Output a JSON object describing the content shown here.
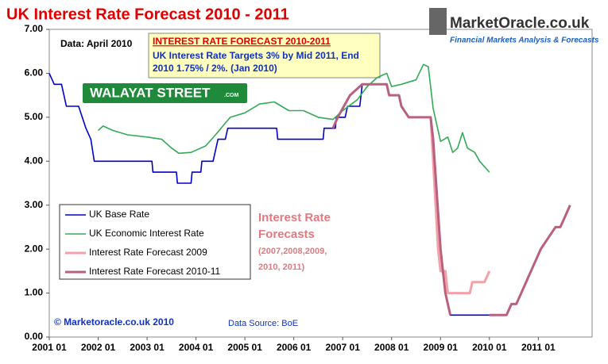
{
  "chart_data": {
    "type": "line",
    "title": "UK Interest Rate Forecast 2010 - 2011",
    "note": "Data: April 2010",
    "box_title": "INTEREST RATE FORECAST 2010-2011",
    "box_text": [
      "UK Interest Rate Targets 3% by Mid 2011, End",
      "2010 1.75% / 2%. (Jan 2010)"
    ],
    "sign": "WALAYAT STREET",
    "sign_suffix": ".COM",
    "logo": "MarketOracle.co.uk",
    "logo_tagline": "Financial Markets Analysis & Forecasts",
    "annotation": [
      "Interest Rate",
      "Forecasts",
      "(2007,2008,2009,",
      "2010, 2011)"
    ],
    "copyright": "© Marketoracle.co.uk  2010",
    "source": "Data Source: BoE",
    "xlim": [
      2001,
      2012.1
    ],
    "ylim": [
      0,
      7
    ],
    "xticks": [
      {
        "value": 2001,
        "label": "2001 01"
      },
      {
        "value": 2002,
        "label": "2002 01"
      },
      {
        "value": 2003,
        "label": "2003 01"
      },
      {
        "value": 2004,
        "label": "2004 01"
      },
      {
        "value": 2005,
        "label": "2005 01"
      },
      {
        "value": 2006,
        "label": "2006 01"
      },
      {
        "value": 2007,
        "label": "2007 01"
      },
      {
        "value": 2008,
        "label": "2008 01"
      },
      {
        "value": 2009,
        "label": "2009 01"
      },
      {
        "value": 2010,
        "label": "2010 01"
      },
      {
        "value": 2011,
        "label": "2011 01"
      }
    ],
    "yticks": [
      {
        "value": 0,
        "label": "0.00"
      },
      {
        "value": 1,
        "label": "1.00"
      },
      {
        "value": 2,
        "label": "2.00"
      },
      {
        "value": 3,
        "label": "3.00"
      },
      {
        "value": 4,
        "label": "4.00"
      },
      {
        "value": 5,
        "label": "5.00"
      },
      {
        "value": 6,
        "label": "6.00"
      },
      {
        "value": 7,
        "label": "7.00"
      }
    ],
    "series": [
      {
        "name": "UK Base Rate",
        "color": "#0000cc",
        "x": [
          2001.0,
          2001.1,
          2001.25,
          2001.35,
          2001.6,
          2001.75,
          2001.85,
          2001.92,
          2003.1,
          2003.12,
          2003.6,
          2003.62,
          2003.9,
          2003.92,
          2004.1,
          2004.12,
          2004.35,
          2004.45,
          2004.6,
          2004.65,
          2005.65,
          2005.67,
          2006.6,
          2006.62,
          2006.85,
          2006.87,
          2007.05,
          2007.1,
          2007.35,
          2007.4,
          2007.9,
          2007.95,
          2008.15,
          2008.2,
          2008.35,
          2008.8,
          2008.85,
          2008.92,
          2009.0,
          2009.05,
          2009.1,
          2009.2,
          2010.0
        ],
        "values": [
          6.0,
          5.75,
          5.75,
          5.25,
          5.25,
          4.75,
          4.5,
          4.0,
          4.0,
          3.75,
          3.75,
          3.5,
          3.5,
          3.75,
          3.75,
          4.0,
          4.0,
          4.5,
          4.5,
          4.75,
          4.75,
          4.5,
          4.5,
          4.75,
          4.75,
          5.0,
          5.0,
          5.25,
          5.25,
          5.75,
          5.75,
          5.5,
          5.5,
          5.25,
          5.0,
          5.0,
          4.5,
          3.0,
          2.0,
          1.5,
          1.0,
          0.5,
          0.5
        ]
      },
      {
        "name": "UK Economic Interest Rate",
        "color": "#33aa55",
        "x": [
          2002.0,
          2002.1,
          2002.3,
          2002.6,
          2003.0,
          2003.3,
          2003.5,
          2003.65,
          2003.9,
          2004.2,
          2004.4,
          2004.7,
          2005.0,
          2005.3,
          2005.6,
          2005.9,
          2006.2,
          2006.5,
          2006.8,
          2007.0,
          2007.3,
          2007.5,
          2007.7,
          2007.9,
          2008.0,
          2008.2,
          2008.5,
          2008.65,
          2008.75,
          2008.85,
          2009.0,
          2009.15,
          2009.25,
          2009.35,
          2009.45,
          2009.55,
          2009.7,
          2009.8,
          2010.0
        ],
        "values": [
          4.7,
          4.8,
          4.7,
          4.6,
          4.55,
          4.5,
          4.3,
          4.18,
          4.2,
          4.35,
          4.6,
          5.0,
          5.1,
          5.3,
          5.35,
          5.15,
          5.15,
          5.0,
          4.95,
          5.15,
          5.4,
          5.7,
          5.9,
          6.0,
          5.7,
          5.75,
          5.85,
          6.2,
          6.15,
          5.2,
          4.45,
          4.55,
          4.2,
          4.3,
          4.65,
          4.3,
          4.2,
          4.0,
          3.75
        ]
      },
      {
        "name": "Interest Rate Forecast 2009",
        "color": "#f4a0a8",
        "x": [
          2008.8,
          2008.95,
          2009.0,
          2009.1,
          2009.15,
          2009.6,
          2009.65,
          2009.9,
          2010.0
        ],
        "values": [
          5.0,
          2.0,
          1.5,
          1.5,
          1.0,
          1.0,
          1.25,
          1.25,
          1.5
        ]
      },
      {
        "name": "Interest Rate Forecast 2010-11",
        "color": "#b8607e",
        "x": [
          2006.8,
          2006.9,
          2007.15,
          2007.4,
          2007.9,
          2007.95,
          2008.15,
          2008.2,
          2008.35,
          2008.8,
          2008.85,
          2009.0,
          2009.05,
          2009.1,
          2009.2,
          null,
          2010.0,
          2010.35,
          2010.45,
          2010.55,
          2010.65,
          2010.85,
          2011.05,
          2011.2,
          2011.35,
          2011.45,
          2011.55,
          2011.65
        ],
        "values": [
          4.75,
          5.0,
          5.5,
          5.75,
          5.75,
          5.5,
          5.5,
          5.25,
          5.0,
          5.0,
          4.5,
          2.0,
          1.5,
          1.0,
          0.5,
          null,
          0.5,
          0.5,
          0.75,
          0.75,
          1.0,
          1.5,
          2.0,
          2.25,
          2.5,
          2.5,
          2.75,
          3.0
        ]
      }
    ]
  }
}
